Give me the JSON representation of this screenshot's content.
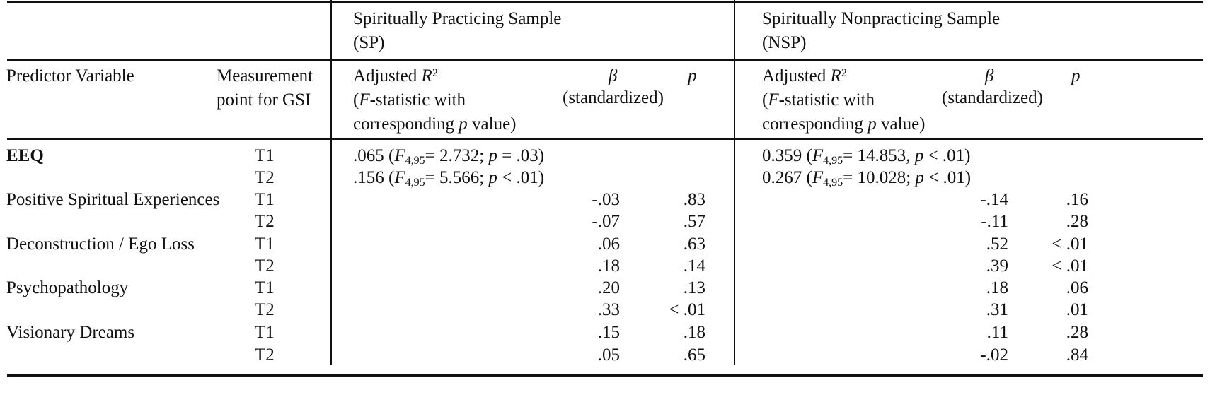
{
  "header": {
    "sp_title_line1": "Spiritually Practicing Sample",
    "sp_title_line2": "(SP)",
    "nsp_title_line1": "Spiritually Nonpracticing Sample",
    "nsp_title_line2": "(NSP)",
    "predictor_label": "Predictor Variable",
    "measurement_line1": "Measurement",
    "measurement_line2": "point for GSI",
    "adjusted_prefix": "Adjusted ",
    "r_symbol": "R",
    "r_exponent": "2",
    "fstat_f": "F",
    "fstat_rest": "-statistic with",
    "corresponding_prefix": "corresponding ",
    "p_symbol": "p",
    "corresponding_suffix": " value)",
    "open_paren": "(",
    "beta_symbol": "β",
    "beta_note": "(standardized)",
    "p_col": "p"
  },
  "model_fit": {
    "sp": [
      {
        "value": ".065 (",
        "f": "F",
        "sub": "4,95",
        "stat": "= 2.732; ",
        "p": "p",
        "rest": " = .03)"
      },
      {
        "value": ".156 (",
        "f": "F",
        "sub": "4,95",
        "stat": "= 5.566; ",
        "p": "p",
        "rest": " < .01)"
      }
    ],
    "nsp": [
      {
        "value": "0.359 (",
        "f": "F",
        "sub": "4,95",
        "stat": "= 14.853, ",
        "p": "p",
        "rest": " < .01)"
      },
      {
        "value": "0.267 (",
        "f": "F",
        "sub": "4,95",
        "stat": "= 10.028; ",
        "p": "p",
        "rest": " < .01)"
      }
    ]
  },
  "rows": [
    {
      "predictor": "EEQ",
      "t": "T1",
      "sp_beta": "",
      "sp_p": "",
      "nsp_beta": "",
      "nsp_p": ""
    },
    {
      "predictor": "",
      "t": "T2",
      "sp_beta": "",
      "sp_p": "",
      "nsp_beta": "",
      "nsp_p": ""
    },
    {
      "predictor": "Positive Spiritual Experiences",
      "t": "T1",
      "sp_beta": "-.03",
      "sp_p": ".83",
      "nsp_beta": "-.14",
      "nsp_p": ".16"
    },
    {
      "predictor": "",
      "t": "T2",
      "sp_beta": "-.07",
      "sp_p": ".57",
      "nsp_beta": "-.11",
      "nsp_p": ".28"
    },
    {
      "predictor": "Deconstruction / Ego Loss",
      "t": "T1",
      "sp_beta": ".06",
      "sp_p": ".63",
      "nsp_beta": ".52",
      "nsp_p": "< .01"
    },
    {
      "predictor": "",
      "t": "T2",
      "sp_beta": ".18",
      "sp_p": ".14",
      "nsp_beta": ".39",
      "nsp_p": "< .01"
    },
    {
      "predictor": "Psychopathology",
      "t": "T1",
      "sp_beta": ".20",
      "sp_p": ".13",
      "nsp_beta": ".18",
      "nsp_p": ".06"
    },
    {
      "predictor": "",
      "t": "T2",
      "sp_beta": ".33",
      "sp_p": "< .01",
      "nsp_beta": ".31",
      "nsp_p": ".01"
    },
    {
      "predictor": "Visionary Dreams",
      "t": "T1",
      "sp_beta": ".15",
      "sp_p": ".18",
      "nsp_beta": ".11",
      "nsp_p": ".28"
    },
    {
      "predictor": "",
      "t": "T2",
      "sp_beta": ".05",
      "sp_p": ".65",
      "nsp_beta": "-.02",
      "nsp_p": ".84"
    }
  ]
}
